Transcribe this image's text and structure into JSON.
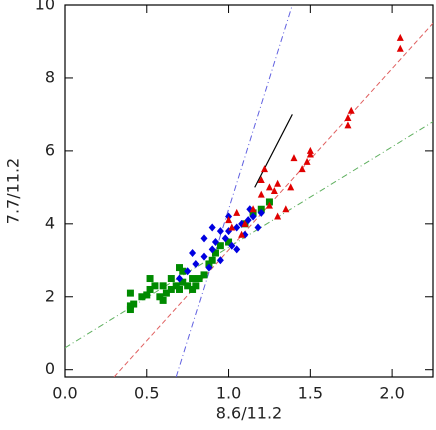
{
  "chart_data": {
    "type": "scatter",
    "xlabel": "8.6/11.2",
    "ylabel": "7.7/11.2",
    "xlim": [
      0,
      2.25
    ],
    "ylim": [
      -0.2,
      10
    ],
    "xticks": [
      {
        "value": 0,
        "label": "0.0"
      },
      {
        "value": 0.5,
        "label": "0.5"
      },
      {
        "value": 1,
        "label": "1.0"
      },
      {
        "value": 1.5,
        "label": "1.5"
      },
      {
        "value": 2,
        "label": "2.0"
      }
    ],
    "yticks": [
      0,
      2,
      4,
      6,
      8,
      10
    ],
    "series": [
      {
        "marker": "square",
        "color": "#008a00",
        "x": [
          0.4,
          0.4,
          0.42,
          0.4,
          0.47,
          0.5,
          0.52,
          0.55,
          0.58,
          0.6,
          0.62,
          0.65,
          0.68,
          0.7,
          0.72,
          0.75,
          0.78,
          0.8,
          0.82,
          0.85,
          0.52,
          0.6,
          0.7,
          0.72,
          0.88,
          0.9,
          0.92,
          1.0,
          1.1,
          1.15,
          1.2,
          1.25,
          0.95,
          0.65,
          0.78
        ],
        "values": [
          1.65,
          1.75,
          1.8,
          2.1,
          2.0,
          2.05,
          2.2,
          2.3,
          2.0,
          2.3,
          2.1,
          2.2,
          2.3,
          2.2,
          2.4,
          2.3,
          2.5,
          2.3,
          2.5,
          2.6,
          2.5,
          1.9,
          2.8,
          2.7,
          2.9,
          3.0,
          3.2,
          3.5,
          4.0,
          4.3,
          4.4,
          4.6,
          3.4,
          2.5,
          2.2
        ]
      },
      {
        "marker": "diamond",
        "color": "#0000e0",
        "x": [
          0.75,
          0.8,
          0.85,
          0.88,
          0.9,
          0.92,
          0.95,
          0.98,
          1.0,
          1.02,
          1.05,
          1.08,
          1.1,
          1.12,
          1.15,
          1.18,
          1.2,
          0.95,
          0.85,
          0.9,
          1.0,
          0.7,
          0.78,
          1.05,
          1.13
        ],
        "values": [
          2.7,
          2.9,
          3.1,
          2.8,
          3.3,
          3.5,
          3.0,
          3.6,
          3.8,
          3.4,
          3.9,
          4.0,
          3.7,
          4.1,
          4.2,
          3.9,
          4.3,
          3.8,
          3.6,
          3.9,
          4.2,
          2.5,
          3.2,
          3.3,
          4.4
        ]
      },
      {
        "marker": "triangle",
        "color": "#e00000",
        "x": [
          1.0,
          1.02,
          1.05,
          1.08,
          1.1,
          1.15,
          1.2,
          1.25,
          1.3,
          1.35,
          1.38,
          1.4,
          1.45,
          1.48,
          1.5,
          1.5,
          1.3,
          1.28,
          1.2,
          1.22,
          1.73,
          1.73,
          1.75,
          2.05,
          2.05,
          1.25
        ],
        "values": [
          4.1,
          3.9,
          4.3,
          3.7,
          4.0,
          4.4,
          4.8,
          4.5,
          4.2,
          4.4,
          5.0,
          5.8,
          5.5,
          5.7,
          6.0,
          5.9,
          5.1,
          4.9,
          5.2,
          5.5,
          6.7,
          6.9,
          7.1,
          8.8,
          9.1,
          5.0
        ]
      }
    ],
    "lines": [
      {
        "color": "#6060e0",
        "style": "dashdot",
        "x": [
          0.68,
          1.39
        ],
        "y": [
          -0.2,
          10
        ]
      },
      {
        "color": "#e06060",
        "style": "dashed",
        "x": [
          0.3,
          2.25
        ],
        "y": [
          -0.2,
          9.5
        ]
      },
      {
        "color": "#60b060",
        "style": "dashdot",
        "x": [
          0,
          2.25
        ],
        "y": [
          0.6,
          6.8
        ]
      },
      {
        "color": "#000000",
        "style": "solid",
        "x": [
          1.16,
          1.39
        ],
        "y": [
          5.0,
          7.0
        ]
      }
    ]
  }
}
